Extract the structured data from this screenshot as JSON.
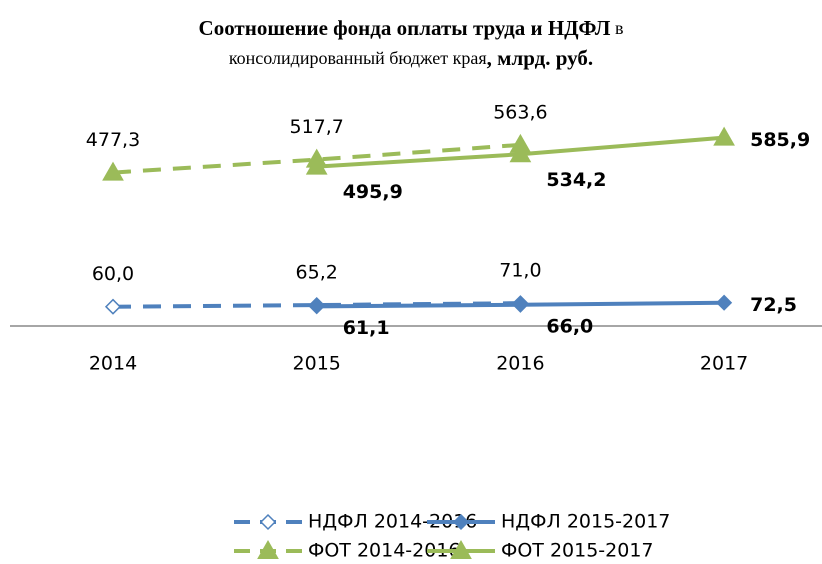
{
  "chart_data": {
    "type": "line",
    "title": [
      [
        {
          "text": "Соотношение фонда оплаты труда и НДФЛ",
          "bold": true
        },
        {
          "text": " в",
          "bold": false
        }
      ],
      [
        {
          "text": "консолидированный бюджет края",
          "bold": false
        },
        {
          "text": ", млрд. руб.",
          "bold": true
        }
      ]
    ],
    "categories": [
      "2014",
      "2015",
      "2016",
      "2017"
    ],
    "ylim": [
      0,
      700
    ],
    "series": [
      {
        "name": "НДФЛ 2014-2016",
        "color": "#4f81bd",
        "dash": true,
        "marker": "diamond-open",
        "values": [
          60.0,
          65.2,
          71.0,
          null
        ],
        "value_labels": [
          "60,0",
          "65,2",
          "71,0",
          null
        ]
      },
      {
        "name": "НДФЛ 2015-2017",
        "color": "#4f81bd",
        "dash": false,
        "marker": "diamond",
        "values": [
          null,
          61.1,
          66.0,
          72.5
        ],
        "value_labels": [
          null,
          "61,1",
          "66,0",
          "72,5"
        ]
      },
      {
        "name": "ФОТ 2014-2016",
        "color": "#9bbb59",
        "dash": true,
        "marker": "triangle",
        "values": [
          477.3,
          517.7,
          563.6,
          null
        ],
        "value_labels": [
          "477,3",
          "517,7",
          "563,6",
          null
        ]
      },
      {
        "name": "ФОТ 2015-2017",
        "color": "#9bbb59",
        "dash": false,
        "marker": "triangle",
        "values": [
          null,
          495.9,
          534.2,
          585.9
        ],
        "value_labels": [
          null,
          "495,9",
          "534,2",
          "585,9"
        ]
      }
    ]
  }
}
